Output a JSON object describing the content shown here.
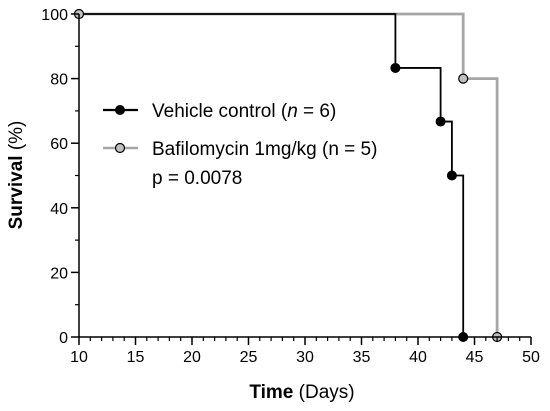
{
  "chart_data": {
    "type": "line",
    "subtype": "kaplan-meier survival",
    "title": "",
    "xlabel_bold": "Time",
    "xlabel_rest": " (Days)",
    "ylabel_bold": "Survival",
    "ylabel_rest": " (%)",
    "xlim": [
      10,
      50
    ],
    "ylim": [
      0,
      100
    ],
    "x_ticks": [
      10,
      15,
      20,
      25,
      30,
      35,
      40,
      45,
      50
    ],
    "x_minor_step": 1,
    "y_ticks": [
      0,
      20,
      40,
      60,
      80,
      100
    ],
    "y_minor_step": 10,
    "grid": false,
    "legend_position": "left-middle",
    "series": [
      {
        "name_prefix": "Vehicle control (",
        "name_italic": "n",
        "name_suffix": " = 6)",
        "color": "#000000",
        "marker_fill": "#000000",
        "steps": [
          [
            10,
            100
          ],
          [
            38,
            100
          ],
          [
            38,
            83.3
          ],
          [
            42,
            83.3
          ],
          [
            42,
            66.7
          ],
          [
            43,
            66.7
          ],
          [
            43,
            50
          ],
          [
            44,
            50
          ],
          [
            44,
            0
          ]
        ],
        "markers": [
          [
            38,
            83.3
          ],
          [
            42,
            66.7
          ],
          [
            43,
            50
          ],
          [
            44,
            0
          ]
        ]
      },
      {
        "name": "Bafilomycin 1mg/kg (n = 5)",
        "color": "#a6a6a6",
        "marker_fill": "#c0c0c0",
        "steps": [
          [
            10,
            100
          ],
          [
            44,
            100
          ],
          [
            44,
            80
          ],
          [
            47,
            80
          ],
          [
            47,
            0
          ]
        ],
        "markers": [
          [
            10,
            100
          ],
          [
            44,
            80
          ],
          [
            47,
            0
          ]
        ]
      }
    ],
    "annotation": "p = 0.0078"
  }
}
